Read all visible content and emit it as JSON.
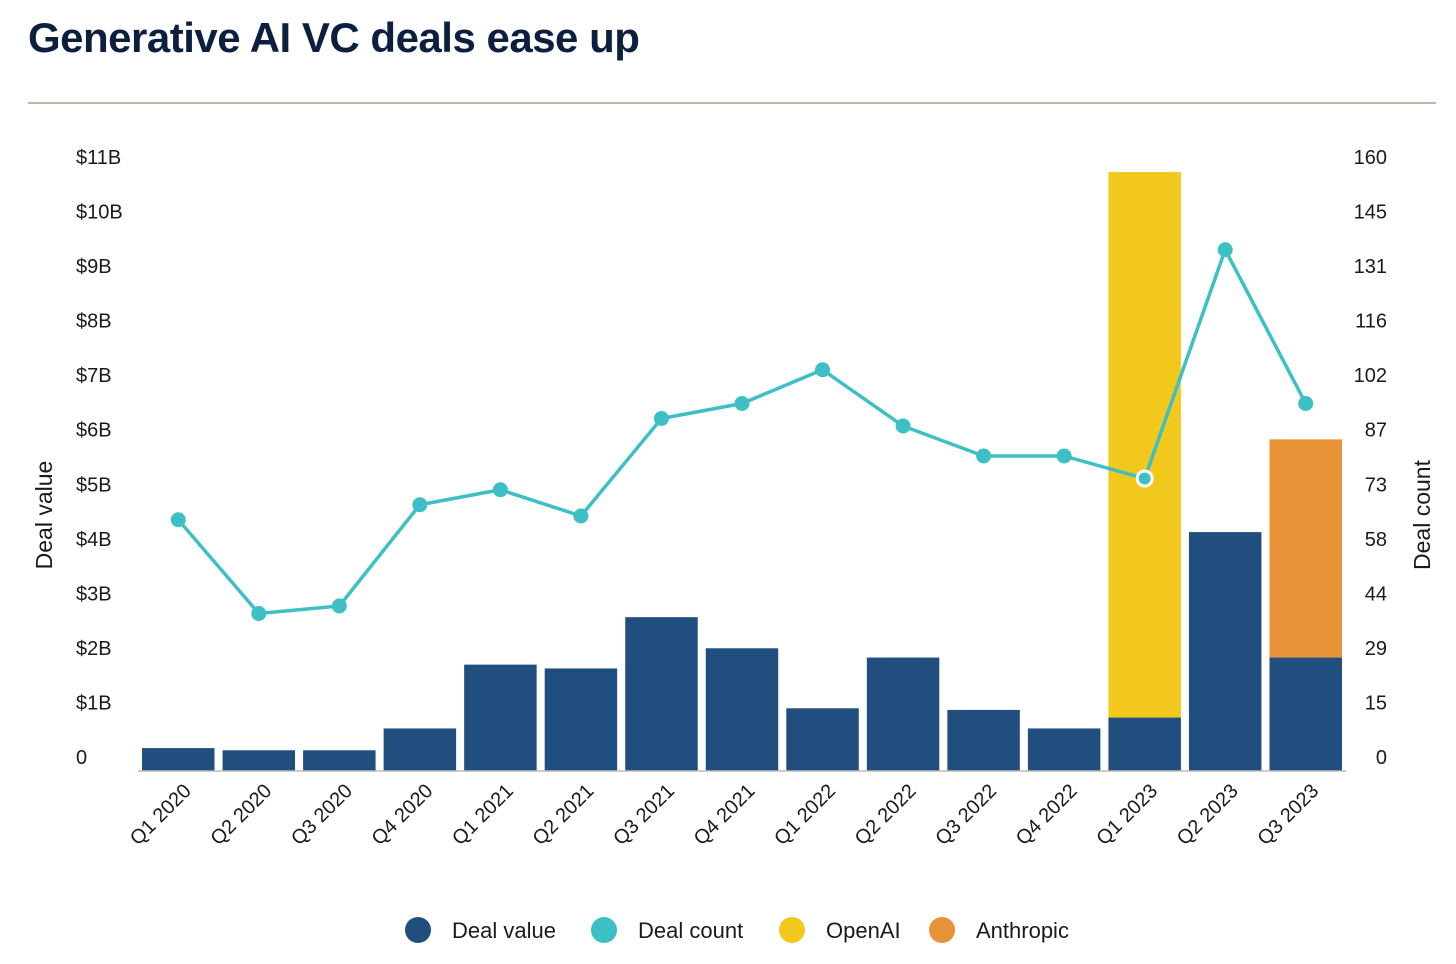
{
  "title": "Generative AI VC deals ease up",
  "chart_data": {
    "type": "bar",
    "title": "Generative AI VC deals ease up",
    "categories": [
      "Q1 2020",
      "Q2 2020",
      "Q3 2020",
      "Q4 2020",
      "Q1 2021",
      "Q2 2021",
      "Q3 2021",
      "Q4 2021",
      "Q1 2022",
      "Q2 2022",
      "Q3 2022",
      "Q4 2022",
      "Q1 2023",
      "Q2 2023",
      "Q3 2023"
    ],
    "ylabel_left": "Deal value",
    "ylabel_right": "Deal count",
    "left_ticks": [
      "0",
      "$1B",
      "$2B",
      "$3B",
      "$4B",
      "$5B",
      "$6B",
      "$7B",
      "$8B",
      "$9B",
      "$10B",
      "$11B"
    ],
    "right_ticks": [
      "0",
      "15",
      "29",
      "44",
      "58",
      "73",
      "87",
      "102",
      "116",
      "131",
      "145",
      "160"
    ],
    "ylim_left": [
      0,
      11
    ],
    "ylim_right": [
      0,
      160
    ],
    "series": [
      {
        "name": "Deal value",
        "kind": "bar",
        "color": "#1f4e7f",
        "values": [
          0.42,
          0.38,
          0.38,
          0.78,
          1.95,
          1.88,
          2.82,
          2.25,
          1.15,
          2.08,
          1.12,
          0.78,
          0.98,
          4.38,
          2.08
        ]
      },
      {
        "name": "Deal count",
        "kind": "line",
        "color": "#3dbfc6",
        "values": [
          67,
          42,
          44,
          71,
          75,
          68,
          94,
          98,
          107,
          92,
          84,
          84,
          78,
          139,
          98
        ]
      },
      {
        "name": "OpenAI",
        "kind": "stacked-bar",
        "color": "#f2c81c",
        "values": [
          0,
          0,
          0,
          0,
          0,
          0,
          0,
          0,
          0,
          0,
          0,
          0,
          10.0,
          0,
          0
        ]
      },
      {
        "name": "Anthropic",
        "kind": "stacked-bar",
        "color": "#e89238",
        "values": [
          0,
          0,
          0,
          0,
          0,
          0,
          0,
          0,
          0,
          0,
          0,
          0,
          0,
          0,
          4.0
        ]
      }
    ],
    "legend": {
      "position": "bottom",
      "items": [
        {
          "label": "Deal value",
          "color": "#1f4e7f"
        },
        {
          "label": "Deal count",
          "color": "#3dbfc6"
        },
        {
          "label": "OpenAI",
          "color": "#f2c81c"
        },
        {
          "label": "Anthropic",
          "color": "#e89238"
        }
      ]
    },
    "grid": false
  }
}
